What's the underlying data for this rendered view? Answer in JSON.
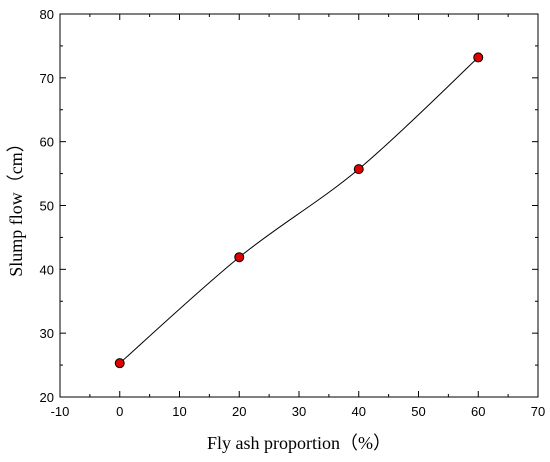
{
  "chart_data": {
    "type": "line",
    "xlabel": "Fly ash proportion（%）",
    "ylabel": "Slump flow（cm）",
    "xlim": [
      -10,
      70
    ],
    "ylim": [
      20,
      80
    ],
    "xticks": [
      -10,
      0,
      10,
      20,
      30,
      40,
      50,
      60,
      70
    ],
    "yticks": [
      20,
      30,
      40,
      50,
      60,
      70,
      80
    ],
    "grid": false,
    "series": [
      {
        "x": [
          0,
          20,
          40,
          60
        ],
        "y": [
          25.3,
          41.9,
          55.7,
          73.2
        ],
        "marker_color": "#e00000",
        "line_color": "#000000",
        "smooth": true
      }
    ]
  }
}
